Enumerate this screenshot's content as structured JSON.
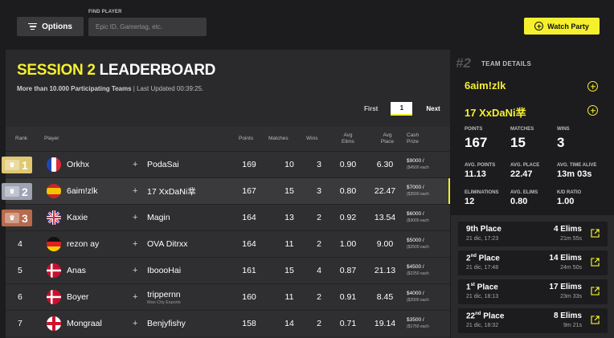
{
  "toolbar": {
    "options_label": "Options",
    "find_label": "FIND PLAYER",
    "find_placeholder": "Epic ID, Gamertag, etc.",
    "watch_label": "Watch Party"
  },
  "leaderboard": {
    "title_highlight": "SESSION 2",
    "title_rest": " LEADERBOARD",
    "teams_text": "More than 10.000 Participating Teams",
    "updated_text": " | Last Updated 00:39:25.",
    "pager": {
      "first": "First",
      "page": "1",
      "next": "Next"
    },
    "columns": {
      "rank": "Rank",
      "player": "Player",
      "points": "Points",
      "matches": "Matches",
      "wins": "Wins",
      "avg_elims_1": "Avg",
      "avg_elims_2": "Elims",
      "avg_place_1": "Avg",
      "avg_place_2": "Place",
      "cash_1": "Cash",
      "cash_2": "Prize"
    },
    "rows": [
      {
        "rank": "1",
        "player": "Orkhx",
        "teammate": "PodaSai",
        "org": "",
        "points": "169",
        "matches": "10",
        "wins": "3",
        "avg_elims": "0.90",
        "avg_place": "6.30",
        "cash": "$9000 /",
        "cash_each": "($4500 each"
      },
      {
        "rank": "2",
        "player": "6aim!zlk",
        "teammate": "17 XxDaNi丵",
        "org": "",
        "points": "167",
        "matches": "15",
        "wins": "3",
        "avg_elims": "0.80",
        "avg_place": "22.47",
        "cash": "$7000 /",
        "cash_each": "($3500 each"
      },
      {
        "rank": "3",
        "player": "Kaxie",
        "teammate": "Magin",
        "org": "",
        "points": "164",
        "matches": "13",
        "wins": "2",
        "avg_elims": "0.92",
        "avg_place": "13.54",
        "cash": "$6000 /",
        "cash_each": "($3000 each"
      },
      {
        "rank": "4",
        "player": "rezon ay",
        "teammate": "OVA Ditrxx",
        "org": "",
        "points": "164",
        "matches": "11",
        "wins": "2",
        "avg_elims": "1.00",
        "avg_place": "9.00",
        "cash": "$5000 /",
        "cash_each": "($2500 each"
      },
      {
        "rank": "5",
        "player": "Anas",
        "teammate": "IboooHai",
        "org": "",
        "points": "161",
        "matches": "15",
        "wins": "4",
        "avg_elims": "0.87",
        "avg_place": "21.13",
        "cash": "$4500 /",
        "cash_each": "($2250 each"
      },
      {
        "rank": "6",
        "player": "Boyer",
        "teammate": "trippernn",
        "org": "Man City Esports",
        "points": "160",
        "matches": "11",
        "wins": "2",
        "avg_elims": "0.91",
        "avg_place": "8.45",
        "cash": "$4000 /",
        "cash_each": "($2000 each"
      },
      {
        "rank": "7",
        "player": "Mongraal",
        "teammate": "Benjyfishy",
        "org": "",
        "points": "158",
        "matches": "14",
        "wins": "2",
        "avg_elims": "0.71",
        "avg_place": "19.14",
        "cash": "$3500 /",
        "cash_each": "($1750 each"
      }
    ]
  },
  "team_details": {
    "rank": "#2",
    "heading": "TEAM DETAILS",
    "players": [
      "6aim!zlk",
      "17 XxDaNi丵"
    ],
    "stats": {
      "points_label": "POINTS",
      "points": "167",
      "matches_label": "MATCHES",
      "matches": "15",
      "wins_label": "WINS",
      "wins": "3",
      "avg_points_label": "AVG. POINTS",
      "avg_points": "11.13",
      "avg_place_label": "AVG. PLACE",
      "avg_place": "22.47",
      "avg_time_label": "AVG. TIME ALIVE",
      "avg_time": "13m 03s",
      "elims_label": "ELIMINATIONS",
      "elims": "12",
      "avg_elims_label": "AVG. ELIMS",
      "avg_elims": "0.80",
      "kd_label": "K/D RATIO",
      "kd": "1.00"
    },
    "matches": [
      {
        "place_num": "9th",
        "place_word": " Place",
        "date": "21 dic, 17:23",
        "elims": "4 Elims",
        "time": "21m 55s"
      },
      {
        "place_num": "2",
        "place_sup": "nd",
        "place_word": " Place",
        "date": "21 dic, 17:48",
        "elims": "14 Elims",
        "time": "24m 50s"
      },
      {
        "place_num": "1",
        "place_sup": "st",
        "place_word": " Place",
        "date": "21 dic, 18:13",
        "elims": "17 Elims",
        "time": "23m 33s"
      },
      {
        "place_num": "22",
        "place_sup": "nd",
        "place_word": " Place",
        "date": "21 dic, 18:32",
        "elims": "8 Elims",
        "time": "9m 21s"
      }
    ]
  },
  "colors": {
    "accent": "#f5f02e",
    "gold": "#e0c872",
    "silver": "#9ea3b4",
    "bronze": "#b86a4c"
  }
}
